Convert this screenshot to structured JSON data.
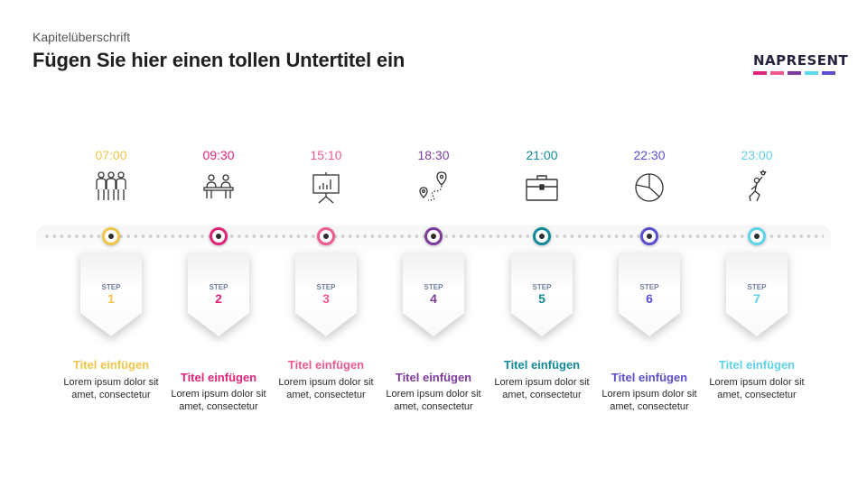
{
  "header": {
    "kicker": "Kapitelüberschrift",
    "title": "Fügen Sie hier einen tollen Untertitel ein"
  },
  "logo": {
    "text": "NAPRESENT",
    "bar_colors": [
      "#e0247a",
      "#f0588f",
      "#7b3aa6",
      "#5ad8ee",
      "#5b4fd0"
    ]
  },
  "timeline": {
    "step_label": "STEP",
    "steps": [
      {
        "time": "07:00",
        "number": "1",
        "color": "#f0c64a",
        "icon": "people-icon",
        "title": "Titel einfügen",
        "body_line1": "Lorem ipsum dolor sit",
        "body_line2": "amet, consectetur"
      },
      {
        "time": "09:30",
        "number": "2",
        "color": "#e0247a",
        "icon": "meeting-desk-icon",
        "title": "Titel einfügen",
        "body_line1": "Lorem ipsum dolor sit",
        "body_line2": "amet, consectetur"
      },
      {
        "time": "15:10",
        "number": "3",
        "color": "#ef5a8f",
        "icon": "presentation-board-icon",
        "title": "Titel einfügen",
        "body_line1": "Lorem ipsum dolor sit",
        "body_line2": "amet, consectetur"
      },
      {
        "time": "18:30",
        "number": "4",
        "color": "#7d3c9c",
        "icon": "route-map-icon",
        "title": "Titel einfügen",
        "body_line1": "Lorem ipsum dolor sit",
        "body_line2": "amet, consectetur"
      },
      {
        "time": "21:00",
        "number": "5",
        "color": "#138a99",
        "icon": "briefcase-icon",
        "title": "Titel einfügen",
        "body_line1": "Lorem ipsum dolor sit",
        "body_line2": "amet, consectetur"
      },
      {
        "time": "22:30",
        "number": "6",
        "color": "#5a4fcf",
        "icon": "pie-chart-icon",
        "title": "Titel einfügen",
        "body_line1": "Lorem ipsum dolor sit",
        "body_line2": "amet, consectetur"
      },
      {
        "time": "23:00",
        "number": "7",
        "color": "#5fd3e8",
        "icon": "climber-icon",
        "title": "Titel einfügen",
        "body_line1": "Lorem ipsum dolor sit",
        "body_line2": "amet, consectetur"
      }
    ]
  }
}
